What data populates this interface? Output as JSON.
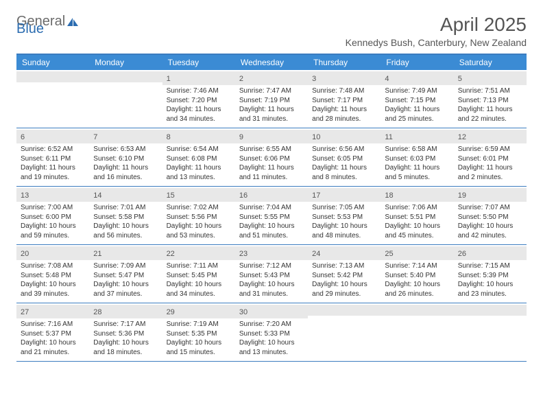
{
  "logo": {
    "text1": "General",
    "text2": "Blue"
  },
  "title": "April 2025",
  "location": "Kennedys Bush, Canterbury, New Zealand",
  "colors": {
    "header_bg": "#3b8bd4",
    "border": "#3b7cbf",
    "day_number_bg": "#e8e8e8",
    "text_primary": "#333333",
    "text_secondary": "#555555"
  },
  "dayHeaders": [
    "Sunday",
    "Monday",
    "Tuesday",
    "Wednesday",
    "Thursday",
    "Friday",
    "Saturday"
  ],
  "weeks": [
    [
      null,
      null,
      {
        "num": "1",
        "sunrise": "7:46 AM",
        "sunset": "7:20 PM",
        "daylight": "11 hours and 34 minutes."
      },
      {
        "num": "2",
        "sunrise": "7:47 AM",
        "sunset": "7:19 PM",
        "daylight": "11 hours and 31 minutes."
      },
      {
        "num": "3",
        "sunrise": "7:48 AM",
        "sunset": "7:17 PM",
        "daylight": "11 hours and 28 minutes."
      },
      {
        "num": "4",
        "sunrise": "7:49 AM",
        "sunset": "7:15 PM",
        "daylight": "11 hours and 25 minutes."
      },
      {
        "num": "5",
        "sunrise": "7:51 AM",
        "sunset": "7:13 PM",
        "daylight": "11 hours and 22 minutes."
      }
    ],
    [
      {
        "num": "6",
        "sunrise": "6:52 AM",
        "sunset": "6:11 PM",
        "daylight": "11 hours and 19 minutes."
      },
      {
        "num": "7",
        "sunrise": "6:53 AM",
        "sunset": "6:10 PM",
        "daylight": "11 hours and 16 minutes."
      },
      {
        "num": "8",
        "sunrise": "6:54 AM",
        "sunset": "6:08 PM",
        "daylight": "11 hours and 13 minutes."
      },
      {
        "num": "9",
        "sunrise": "6:55 AM",
        "sunset": "6:06 PM",
        "daylight": "11 hours and 11 minutes."
      },
      {
        "num": "10",
        "sunrise": "6:56 AM",
        "sunset": "6:05 PM",
        "daylight": "11 hours and 8 minutes."
      },
      {
        "num": "11",
        "sunrise": "6:58 AM",
        "sunset": "6:03 PM",
        "daylight": "11 hours and 5 minutes."
      },
      {
        "num": "12",
        "sunrise": "6:59 AM",
        "sunset": "6:01 PM",
        "daylight": "11 hours and 2 minutes."
      }
    ],
    [
      {
        "num": "13",
        "sunrise": "7:00 AM",
        "sunset": "6:00 PM",
        "daylight": "10 hours and 59 minutes."
      },
      {
        "num": "14",
        "sunrise": "7:01 AM",
        "sunset": "5:58 PM",
        "daylight": "10 hours and 56 minutes."
      },
      {
        "num": "15",
        "sunrise": "7:02 AM",
        "sunset": "5:56 PM",
        "daylight": "10 hours and 53 minutes."
      },
      {
        "num": "16",
        "sunrise": "7:04 AM",
        "sunset": "5:55 PM",
        "daylight": "10 hours and 51 minutes."
      },
      {
        "num": "17",
        "sunrise": "7:05 AM",
        "sunset": "5:53 PM",
        "daylight": "10 hours and 48 minutes."
      },
      {
        "num": "18",
        "sunrise": "7:06 AM",
        "sunset": "5:51 PM",
        "daylight": "10 hours and 45 minutes."
      },
      {
        "num": "19",
        "sunrise": "7:07 AM",
        "sunset": "5:50 PM",
        "daylight": "10 hours and 42 minutes."
      }
    ],
    [
      {
        "num": "20",
        "sunrise": "7:08 AM",
        "sunset": "5:48 PM",
        "daylight": "10 hours and 39 minutes."
      },
      {
        "num": "21",
        "sunrise": "7:09 AM",
        "sunset": "5:47 PM",
        "daylight": "10 hours and 37 minutes."
      },
      {
        "num": "22",
        "sunrise": "7:11 AM",
        "sunset": "5:45 PM",
        "daylight": "10 hours and 34 minutes."
      },
      {
        "num": "23",
        "sunrise": "7:12 AM",
        "sunset": "5:43 PM",
        "daylight": "10 hours and 31 minutes."
      },
      {
        "num": "24",
        "sunrise": "7:13 AM",
        "sunset": "5:42 PM",
        "daylight": "10 hours and 29 minutes."
      },
      {
        "num": "25",
        "sunrise": "7:14 AM",
        "sunset": "5:40 PM",
        "daylight": "10 hours and 26 minutes."
      },
      {
        "num": "26",
        "sunrise": "7:15 AM",
        "sunset": "5:39 PM",
        "daylight": "10 hours and 23 minutes."
      }
    ],
    [
      {
        "num": "27",
        "sunrise": "7:16 AM",
        "sunset": "5:37 PM",
        "daylight": "10 hours and 21 minutes."
      },
      {
        "num": "28",
        "sunrise": "7:17 AM",
        "sunset": "5:36 PM",
        "daylight": "10 hours and 18 minutes."
      },
      {
        "num": "29",
        "sunrise": "7:19 AM",
        "sunset": "5:35 PM",
        "daylight": "10 hours and 15 minutes."
      },
      {
        "num": "30",
        "sunrise": "7:20 AM",
        "sunset": "5:33 PM",
        "daylight": "10 hours and 13 minutes."
      },
      null,
      null,
      null
    ]
  ]
}
